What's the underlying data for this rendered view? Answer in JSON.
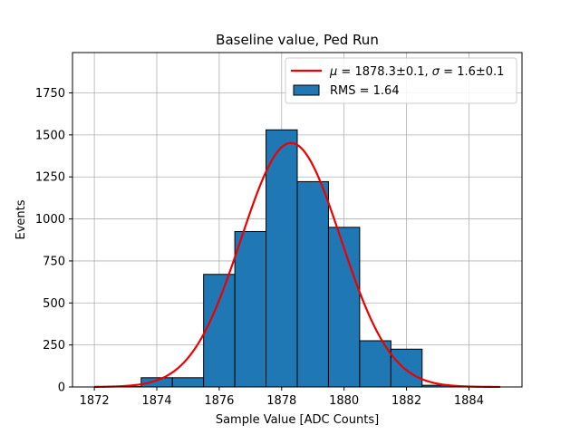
{
  "chart_data": {
    "type": "bar",
    "title": "Baseline value, Ped Run",
    "xlabel": "Sample Value [ADC Counts]",
    "ylabel": "Events",
    "xlim": [
      1871.3,
      1885.7
    ],
    "ylim": [
      0,
      1990
    ],
    "xticks": [
      1872,
      1874,
      1876,
      1878,
      1880,
      1882,
      1884
    ],
    "yticks": [
      0,
      250,
      500,
      750,
      1000,
      1250,
      1500,
      1750
    ],
    "grid": true,
    "legend_position": "top-right",
    "histogram": {
      "name": "RMS = 1.64",
      "color": "#1f77b4",
      "bin_width": 1,
      "bin_starts": [
        1872.5,
        1873.5,
        1874.5,
        1875.5,
        1876.5,
        1877.5,
        1878.5,
        1879.5,
        1880.5,
        1881.5,
        1882.5,
        1883.5
      ],
      "values": [
        2,
        55,
        55,
        670,
        925,
        1530,
        1222,
        950,
        275,
        225,
        10,
        2
      ]
    },
    "fit": {
      "mu_value": "1878.3±0.1",
      "sigma_value": "1.6±0.1",
      "color": "#ee0000",
      "mu": 1878.3,
      "sigma": 1.6,
      "amplitude": 1452,
      "x_range": [
        1872,
        1885
      ]
    }
  }
}
